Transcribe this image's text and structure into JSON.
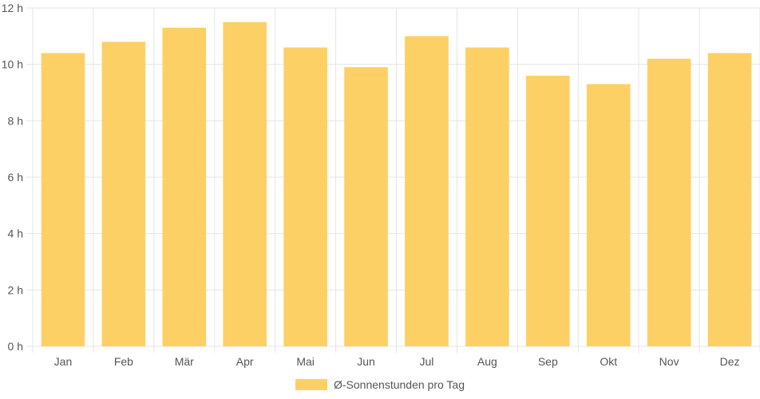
{
  "chart_data": {
    "type": "bar",
    "categories": [
      "Jan",
      "Feb",
      "Mär",
      "Apr",
      "Mai",
      "Jun",
      "Jul",
      "Aug",
      "Sep",
      "Okt",
      "Nov",
      "Dez"
    ],
    "series": [
      {
        "name": "Ø-Sonnenstunden pro Tag",
        "values": [
          10.4,
          10.8,
          11.3,
          11.5,
          10.6,
          9.9,
          11.0,
          10.6,
          9.6,
          9.3,
          10.2,
          10.4
        ]
      }
    ],
    "y_ticks": [
      "0 h",
      "2 h",
      "4 h",
      "6 h",
      "8 h",
      "10 h",
      "12 h"
    ],
    "ylim": [
      0,
      12
    ],
    "grid": true,
    "legend_position": "bottom",
    "colors": {
      "bar": "#fdd066",
      "grid": "#e5e5e5",
      "text": "#555555"
    }
  }
}
